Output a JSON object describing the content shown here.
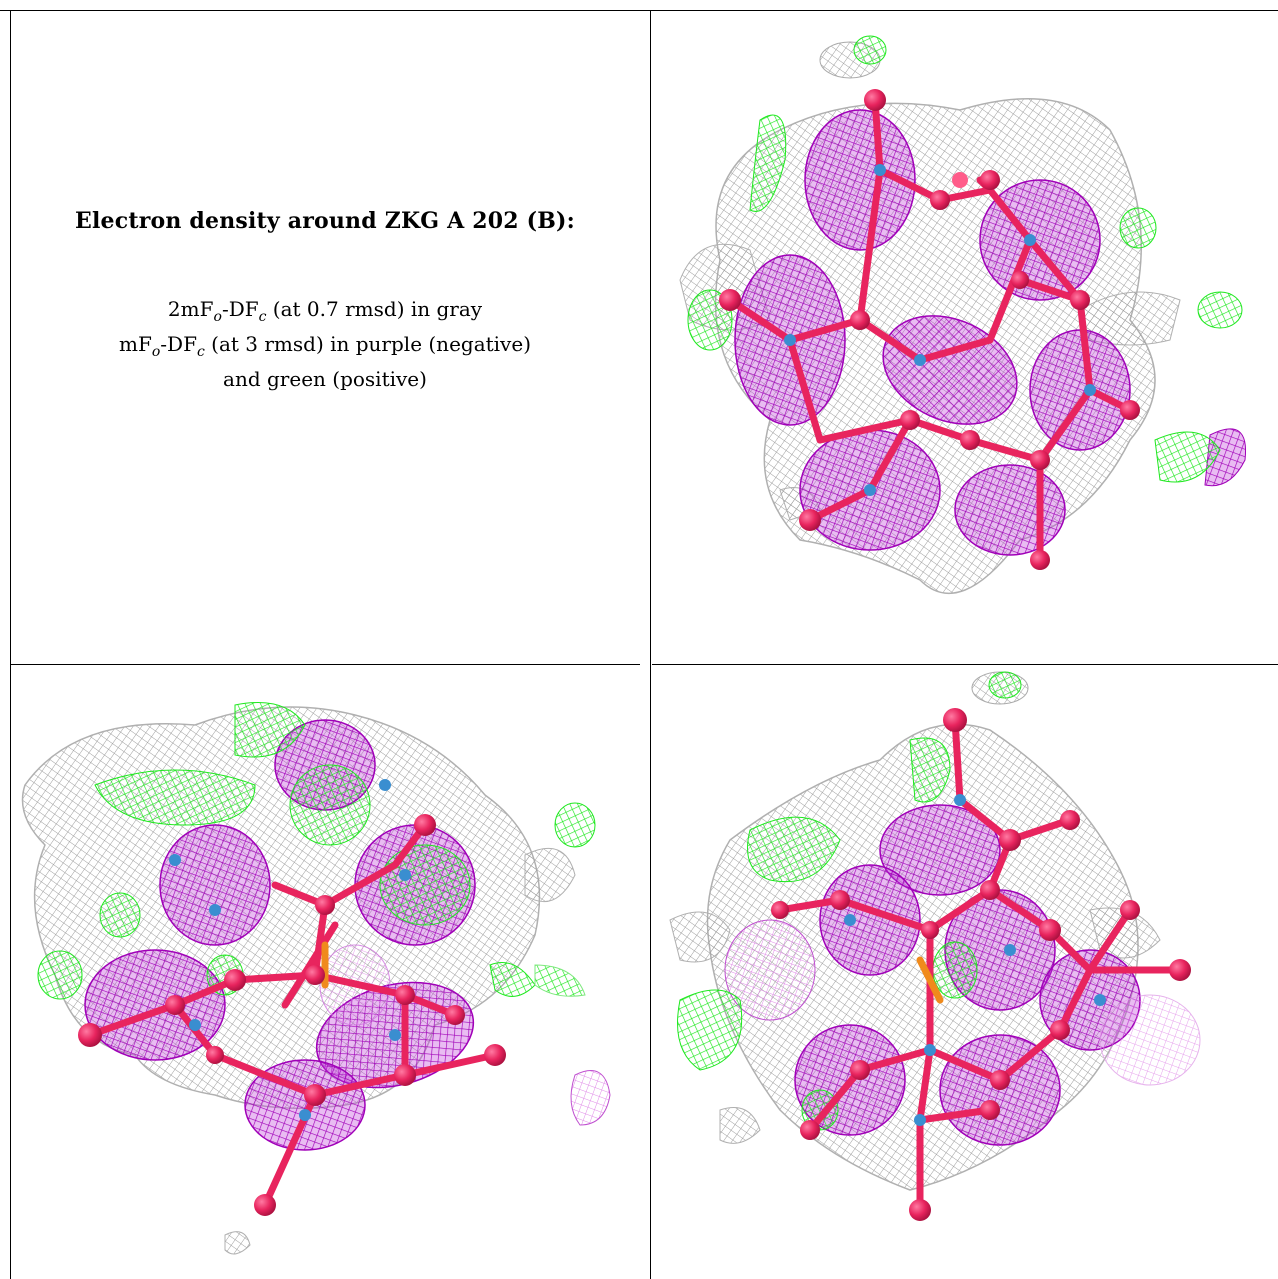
{
  "caption": {
    "title": "Electron density around ZKG A 202 (B):",
    "line1_a": "2mF",
    "line1_sub1": "o",
    "line1_b": "-DF",
    "line1_sub2": "c",
    "line1_c": " (at 0.7 rmsd) in gray",
    "line2_a": "mF",
    "line2_sub1": "o",
    "line2_b": "-DF",
    "line2_sub2": "c",
    "line2_c": " (at 3 rmsd) in purple (negative)",
    "line3": "and green (positive)"
  },
  "colors": {
    "grid": "#000000",
    "mesh_gray": "#a8a8a8",
    "mesh_purple": "#b000c0",
    "mesh_green": "#22ee22",
    "atom_pink": "#e8245e",
    "atom_blue": "#3a8ed0",
    "atom_orange": "#f08a1c"
  },
  "panels": {
    "top_right": "density-view-1",
    "bottom_left": "density-view-2",
    "bottom_right": "density-view-3"
  }
}
